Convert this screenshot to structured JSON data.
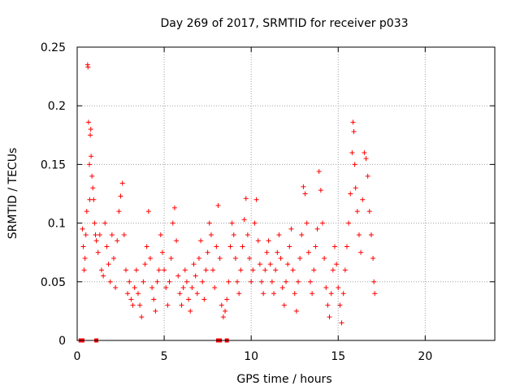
{
  "chart_data": {
    "type": "scatter",
    "title": "Day 269 of 2017, SRMTID for receiver p033",
    "xlabel": "GPS time / hours",
    "ylabel": "SRMTID / TECUs",
    "xlim": [
      0,
      24
    ],
    "ylim": [
      0,
      0.25
    ],
    "x_ticks": [
      0,
      5,
      10,
      15,
      20
    ],
    "y_ticks": [
      0,
      0.05,
      0.1,
      0.15,
      0.2,
      0.25
    ],
    "x_tick_labels": [
      "0",
      "5",
      "10",
      "15",
      "20"
    ],
    "y_tick_labels": [
      "0",
      "0.05",
      "0.1",
      "0.15",
      "0.2",
      "0.25"
    ],
    "grid": true,
    "marker": "+",
    "color": "#ff0000",
    "zero_markers_x": [
      0.2,
      0.3,
      1.1,
      8.1,
      8.2,
      8.6
    ],
    "series": [
      {
        "name": "SRMTID",
        "points": [
          [
            0.3,
            0.095
          ],
          [
            0.35,
            0.08
          ],
          [
            0.4,
            0.06
          ],
          [
            0.45,
            0.07
          ],
          [
            0.5,
            0.09
          ],
          [
            0.55,
            0.11
          ],
          [
            0.6,
            0.235
          ],
          [
            0.62,
            0.233
          ],
          [
            0.65,
            0.186
          ],
          [
            0.7,
            0.15
          ],
          [
            0.72,
            0.12
          ],
          [
            0.75,
            0.175
          ],
          [
            0.78,
            0.18
          ],
          [
            0.8,
            0.157
          ],
          [
            0.85,
            0.14
          ],
          [
            0.9,
            0.13
          ],
          [
            0.95,
            0.12
          ],
          [
            1.0,
            0.1
          ],
          [
            1.05,
            0.09
          ],
          [
            1.1,
            0.085
          ],
          [
            1.2,
            0.075
          ],
          [
            1.3,
            0.09
          ],
          [
            1.4,
            0.06
          ],
          [
            1.5,
            0.055
          ],
          [
            1.6,
            0.1
          ],
          [
            1.7,
            0.08
          ],
          [
            1.8,
            0.065
          ],
          [
            1.9,
            0.05
          ],
          [
            2.0,
            0.09
          ],
          [
            2.1,
            0.07
          ],
          [
            2.2,
            0.045
          ],
          [
            2.3,
            0.085
          ],
          [
            2.4,
            0.11
          ],
          [
            2.5,
            0.123
          ],
          [
            2.6,
            0.134
          ],
          [
            2.7,
            0.09
          ],
          [
            2.8,
            0.06
          ],
          [
            2.9,
            0.04
          ],
          [
            3.0,
            0.05
          ],
          [
            3.1,
            0.035
          ],
          [
            3.2,
            0.03
          ],
          [
            3.3,
            0.045
          ],
          [
            3.4,
            0.06
          ],
          [
            3.5,
            0.04
          ],
          [
            3.6,
            0.03
          ],
          [
            3.7,
            0.02
          ],
          [
            3.8,
            0.05
          ],
          [
            3.9,
            0.065
          ],
          [
            4.0,
            0.08
          ],
          [
            4.1,
            0.11
          ],
          [
            4.2,
            0.07
          ],
          [
            4.3,
            0.045
          ],
          [
            4.4,
            0.035
          ],
          [
            4.5,
            0.025
          ],
          [
            4.6,
            0.05
          ],
          [
            4.7,
            0.06
          ],
          [
            4.8,
            0.09
          ],
          [
            4.9,
            0.075
          ],
          [
            5.0,
            0.06
          ],
          [
            5.1,
            0.045
          ],
          [
            5.2,
            0.03
          ],
          [
            5.3,
            0.05
          ],
          [
            5.4,
            0.07
          ],
          [
            5.5,
            0.1
          ],
          [
            5.6,
            0.113
          ],
          [
            5.7,
            0.085
          ],
          [
            5.8,
            0.055
          ],
          [
            5.9,
            0.04
          ],
          [
            6.0,
            0.03
          ],
          [
            6.1,
            0.045
          ],
          [
            6.2,
            0.06
          ],
          [
            6.3,
            0.05
          ],
          [
            6.4,
            0.035
          ],
          [
            6.5,
            0.025
          ],
          [
            6.6,
            0.045
          ],
          [
            6.7,
            0.065
          ],
          [
            6.8,
            0.055
          ],
          [
            6.9,
            0.04
          ],
          [
            7.0,
            0.07
          ],
          [
            7.1,
            0.085
          ],
          [
            7.2,
            0.05
          ],
          [
            7.3,
            0.035
          ],
          [
            7.4,
            0.06
          ],
          [
            7.5,
            0.075
          ],
          [
            7.6,
            0.1
          ],
          [
            7.7,
            0.09
          ],
          [
            7.8,
            0.06
          ],
          [
            7.9,
            0.045
          ],
          [
            8.0,
            0.08
          ],
          [
            8.1,
            0.115
          ],
          [
            8.2,
            0.07
          ],
          [
            8.3,
            0.03
          ],
          [
            8.4,
            0.02
          ],
          [
            8.5,
            0.025
          ],
          [
            8.6,
            0.035
          ],
          [
            8.7,
            0.05
          ],
          [
            8.8,
            0.08
          ],
          [
            8.9,
            0.1
          ],
          [
            9.0,
            0.09
          ],
          [
            9.1,
            0.07
          ],
          [
            9.2,
            0.05
          ],
          [
            9.3,
            0.04
          ],
          [
            9.4,
            0.06
          ],
          [
            9.5,
            0.08
          ],
          [
            9.6,
            0.103
          ],
          [
            9.7,
            0.121
          ],
          [
            9.8,
            0.09
          ],
          [
            9.9,
            0.07
          ],
          [
            10.0,
            0.05
          ],
          [
            10.1,
            0.06
          ],
          [
            10.2,
            0.1
          ],
          [
            10.3,
            0.12
          ],
          [
            10.4,
            0.085
          ],
          [
            10.5,
            0.065
          ],
          [
            10.6,
            0.05
          ],
          [
            10.7,
            0.04
          ],
          [
            10.8,
            0.06
          ],
          [
            10.9,
            0.075
          ],
          [
            11.0,
            0.085
          ],
          [
            11.1,
            0.065
          ],
          [
            11.2,
            0.05
          ],
          [
            11.3,
            0.04
          ],
          [
            11.4,
            0.06
          ],
          [
            11.5,
            0.075
          ],
          [
            11.6,
            0.09
          ],
          [
            11.7,
            0.07
          ],
          [
            11.8,
            0.045
          ],
          [
            11.9,
            0.03
          ],
          [
            12.0,
            0.05
          ],
          [
            12.1,
            0.065
          ],
          [
            12.2,
            0.08
          ],
          [
            12.3,
            0.095
          ],
          [
            12.4,
            0.06
          ],
          [
            12.5,
            0.04
          ],
          [
            12.6,
            0.025
          ],
          [
            12.7,
            0.05
          ],
          [
            12.8,
            0.07
          ],
          [
            12.9,
            0.09
          ],
          [
            13.0,
            0.131
          ],
          [
            13.1,
            0.125
          ],
          [
            13.2,
            0.1
          ],
          [
            13.3,
            0.075
          ],
          [
            13.4,
            0.05
          ],
          [
            13.5,
            0.04
          ],
          [
            13.6,
            0.06
          ],
          [
            13.7,
            0.08
          ],
          [
            13.8,
            0.095
          ],
          [
            13.9,
            0.144
          ],
          [
            14.0,
            0.128
          ],
          [
            14.1,
            0.1
          ],
          [
            14.2,
            0.07
          ],
          [
            14.3,
            0.045
          ],
          [
            14.4,
            0.03
          ],
          [
            14.5,
            0.02
          ],
          [
            14.6,
            0.04
          ],
          [
            14.7,
            0.06
          ],
          [
            14.8,
            0.08
          ],
          [
            14.9,
            0.065
          ],
          [
            15.0,
            0.045
          ],
          [
            15.1,
            0.03
          ],
          [
            15.2,
            0.015
          ],
          [
            15.3,
            0.04
          ],
          [
            15.4,
            0.06
          ],
          [
            15.5,
            0.08
          ],
          [
            15.6,
            0.1
          ],
          [
            15.7,
            0.125
          ],
          [
            15.8,
            0.16
          ],
          [
            15.85,
            0.186
          ],
          [
            15.9,
            0.178
          ],
          [
            15.95,
            0.15
          ],
          [
            16.0,
            0.13
          ],
          [
            16.1,
            0.11
          ],
          [
            16.2,
            0.09
          ],
          [
            16.3,
            0.075
          ],
          [
            16.4,
            0.12
          ],
          [
            16.5,
            0.16
          ],
          [
            16.6,
            0.155
          ],
          [
            16.7,
            0.14
          ],
          [
            16.8,
            0.11
          ],
          [
            16.9,
            0.09
          ],
          [
            17.0,
            0.07
          ],
          [
            17.05,
            0.05
          ],
          [
            17.1,
            0.04
          ]
        ]
      }
    ]
  }
}
